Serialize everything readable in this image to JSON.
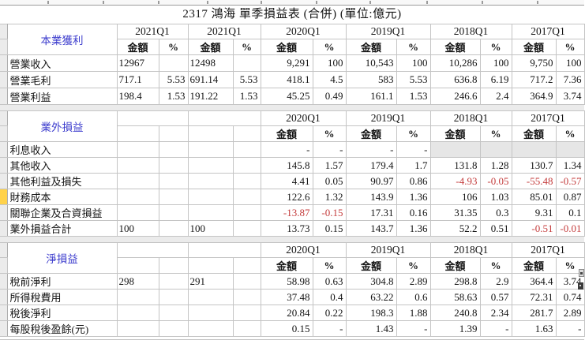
{
  "title": "2317 鴻海 單季損益表 (合併)   (單位:億元)",
  "subheader_labels": [
    "金額",
    "%"
  ],
  "colors": {
    "section_label": "#3c3ccd",
    "negative": "#c43c3c",
    "grid": "#c4c4c4",
    "empty_cell": "#e6e6e6",
    "gutter_bg": "#ebebeb",
    "gutter_highlight": "#ffd24a"
  },
  "sections": [
    {
      "name": "本業獲利",
      "years": [
        "2021Q1",
        "2021Q1",
        "2020Q1",
        "2019Q1",
        "2018Q1",
        "2017Q1"
      ],
      "rows": [
        {
          "label": "營業收入",
          "values": [
            "12967",
            "",
            "12498",
            "",
            "9,291",
            "100",
            "10,543",
            "100",
            "10,286",
            "100",
            "9,750",
            "100"
          ]
        },
        {
          "label": "營業毛利",
          "values": [
            "717.1",
            "5.53",
            "691.14",
            "5.53",
            "418.1",
            "4.5",
            "583",
            "5.53",
            "636.8",
            "6.19",
            "717.2",
            "7.36"
          ]
        },
        {
          "label": "營業利益",
          "values": [
            "198.4",
            "1.53",
            "191.22",
            "1.53",
            "45.25",
            "0.49",
            "161.1",
            "1.53",
            "246.6",
            "2.4",
            "364.9",
            "3.74"
          ]
        }
      ]
    },
    {
      "name": "業外損益",
      "years": [
        "",
        "",
        "2020Q1",
        "2019Q1",
        "2018Q1",
        "2017Q1"
      ],
      "rows": [
        {
          "label": "利息收入",
          "values": [
            "",
            "",
            "",
            "",
            "-",
            "-",
            "-",
            "-",
            "",
            "",
            "",
            ""
          ],
          "empty_gray": [
            8,
            9,
            10,
            11
          ]
        },
        {
          "label": "其他收入",
          "values": [
            "",
            "",
            "",
            "",
            "145.8",
            "1.57",
            "179.4",
            "1.7",
            "131.8",
            "1.28",
            "130.7",
            "1.34"
          ]
        },
        {
          "label": "其他利益及損失",
          "values": [
            "",
            "",
            "",
            "",
            "4.41",
            "0.05",
            "90.97",
            "0.86",
            "-4.93",
            "-0.05",
            "-55.48",
            "-0.57"
          ]
        },
        {
          "label": "財務成本",
          "values": [
            "",
            "",
            "",
            "",
            "122.6",
            "1.32",
            "143.9",
            "1.36",
            "106",
            "1.03",
            "85.01",
            "0.87"
          ],
          "gutter": "yellow"
        },
        {
          "label": "關聯企業及合資損益",
          "values": [
            "",
            "",
            "",
            "",
            "-13.87",
            "-0.15",
            "17.31",
            "0.16",
            "31.35",
            "0.3",
            "9.31",
            "0.1"
          ]
        },
        {
          "label": "業外損益合計",
          "values": [
            "100",
            "",
            "100",
            "",
            "13.73",
            "0.15",
            "143.7",
            "1.36",
            "52.2",
            "0.51",
            "-0.51",
            "-0.01"
          ]
        }
      ]
    },
    {
      "name": "淨損益",
      "years": [
        "",
        "",
        "2020Q1",
        "2019Q1",
        "2018Q1",
        "2017Q1"
      ],
      "rows": [
        {
          "label": "稅前淨利",
          "values": [
            "298",
            "",
            "291",
            "",
            "58.98",
            "0.63",
            "304.8",
            "2.89",
            "298.8",
            "2.9",
            "364.4",
            "3.74"
          ]
        },
        {
          "label": "所得稅費用",
          "values": [
            "",
            "",
            "",
            "",
            "37.48",
            "0.4",
            "63.22",
            "0.6",
            "58.63",
            "0.57",
            "72.31",
            "0.74"
          ]
        },
        {
          "label": "稅後淨利",
          "values": [
            "",
            "",
            "",
            "",
            "20.84",
            "0.22",
            "198.3",
            "1.88",
            "240.8",
            "2.34",
            "281.7",
            "2.89"
          ]
        },
        {
          "label": "每股稅後盈餘(元)",
          "values": [
            "",
            "",
            "",
            "",
            "0.15",
            "-",
            "1.43",
            "-",
            "1.39",
            "-",
            "1.63",
            "-"
          ]
        }
      ]
    }
  ]
}
